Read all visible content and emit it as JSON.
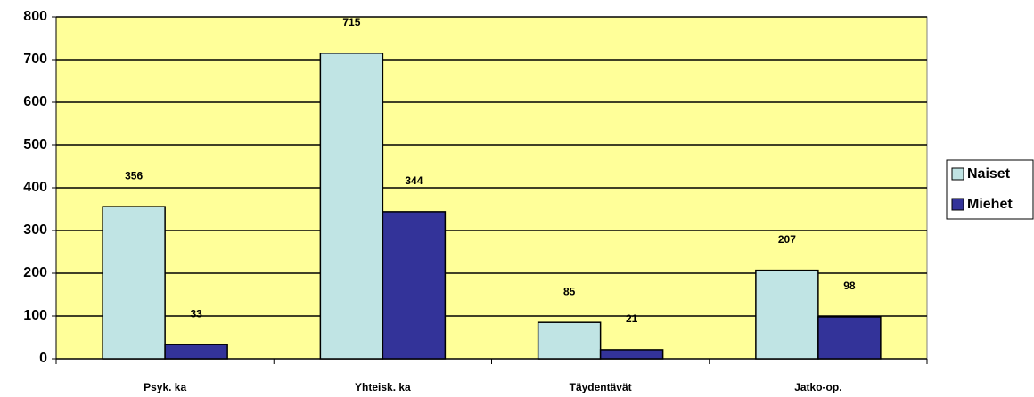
{
  "chart_data": {
    "type": "bar",
    "categories": [
      "Psyk. ka",
      "Yhteisk. ka",
      "Täydentävät",
      "Jatko-op."
    ],
    "series": [
      {
        "name": "Naiset",
        "color": "#c0e4e4",
        "values": [
          356,
          715,
          85,
          207
        ]
      },
      {
        "name": "Miehet",
        "color": "#333399",
        "values": [
          33,
          344,
          21,
          98
        ]
      }
    ],
    "ylim": [
      0,
      800
    ],
    "yticks": [
      0,
      100,
      200,
      300,
      400,
      500,
      600,
      700,
      800
    ],
    "grid": true,
    "legend": "right",
    "plot_background": "#ffff99"
  }
}
